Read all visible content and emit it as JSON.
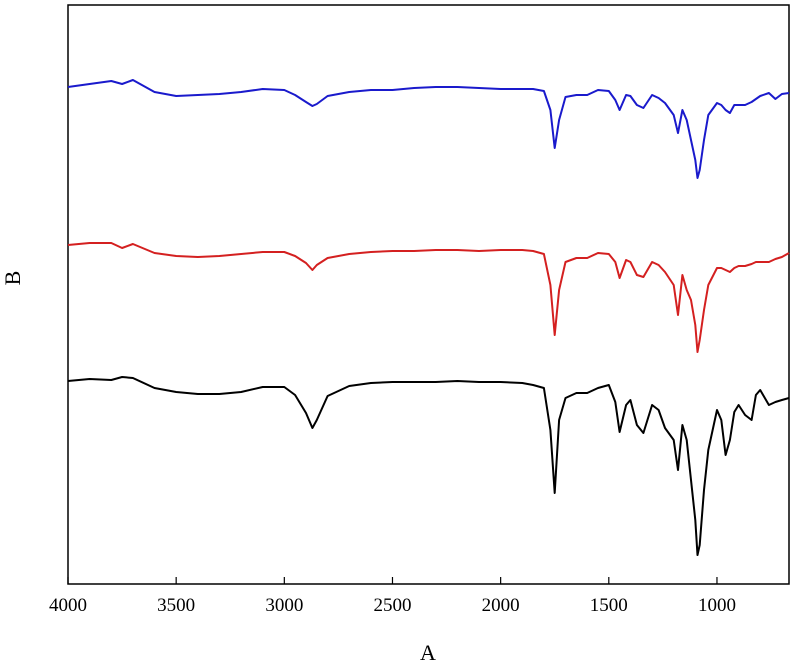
{
  "chart_data": {
    "type": "line",
    "x_label": "A",
    "y_label": "B",
    "xlim": [
      4000,
      667
    ],
    "ylim": [
      0,
      579
    ],
    "xticks": [
      4000,
      3500,
      3000,
      2500,
      2000,
      1500,
      1000
    ],
    "x": [
      4000,
      3900,
      3800,
      3750,
      3700,
      3600,
      3500,
      3400,
      3300,
      3200,
      3100,
      3000,
      2950,
      2900,
      2870,
      2850,
      2800,
      2700,
      2600,
      2500,
      2400,
      2300,
      2200,
      2100,
      2000,
      1900,
      1850,
      1800,
      1770,
      1750,
      1730,
      1700,
      1650,
      1600,
      1550,
      1500,
      1470,
      1450,
      1420,
      1400,
      1370,
      1340,
      1300,
      1270,
      1240,
      1200,
      1180,
      1160,
      1140,
      1120,
      1100,
      1090,
      1080,
      1060,
      1040,
      1000,
      980,
      960,
      940,
      920,
      900,
      870,
      840,
      820,
      800,
      760,
      730,
      700,
      667
    ],
    "series": [
      {
        "color": "#1a1acc",
        "values": [
          497,
          500,
          503,
          500,
          504,
          492,
          488,
          489,
          490,
          492,
          495,
          494,
          489,
          482,
          478,
          480,
          488,
          492,
          494,
          494,
          496,
          497,
          497,
          496,
          495,
          495,
          495,
          493,
          474,
          436,
          464,
          487,
          489,
          489,
          494,
          493,
          484,
          474,
          489,
          488,
          479,
          476,
          489,
          486,
          481,
          469,
          451,
          474,
          464,
          444,
          424,
          406,
          414,
          444,
          469,
          481,
          479,
          474,
          471,
          479,
          479,
          479,
          482,
          485,
          488,
          491,
          485,
          490,
          491
        ]
      },
      {
        "color": "#d42020",
        "values": [
          339,
          341,
          341,
          336,
          340,
          331,
          328,
          327,
          328,
          330,
          332,
          332,
          328,
          321,
          314,
          319,
          326,
          330,
          332,
          333,
          333,
          334,
          334,
          333,
          334,
          334,
          333,
          330,
          299,
          249,
          294,
          322,
          326,
          326,
          331,
          330,
          322,
          306,
          324,
          322,
          309,
          307,
          322,
          319,
          312,
          299,
          269,
          309,
          294,
          284,
          259,
          232,
          244,
          274,
          299,
          316,
          316,
          314,
          312,
          316,
          318,
          318,
          320,
          322,
          322,
          322,
          325,
          327,
          331
        ]
      },
      {
        "color": "#000000",
        "values": [
          203,
          205,
          204,
          207,
          206,
          196,
          192,
          190,
          190,
          192,
          197,
          197,
          189,
          171,
          156,
          164,
          188,
          198,
          201,
          202,
          202,
          202,
          203,
          202,
          202,
          201,
          199,
          196,
          154,
          91,
          164,
          186,
          191,
          191,
          196,
          199,
          182,
          152,
          179,
          184,
          159,
          151,
          179,
          174,
          156,
          144,
          114,
          159,
          144,
          104,
          64,
          29,
          39,
          94,
          134,
          174,
          164,
          129,
          144,
          172,
          179,
          169,
          164,
          189,
          194,
          179,
          182,
          184,
          186
        ]
      }
    ]
  }
}
